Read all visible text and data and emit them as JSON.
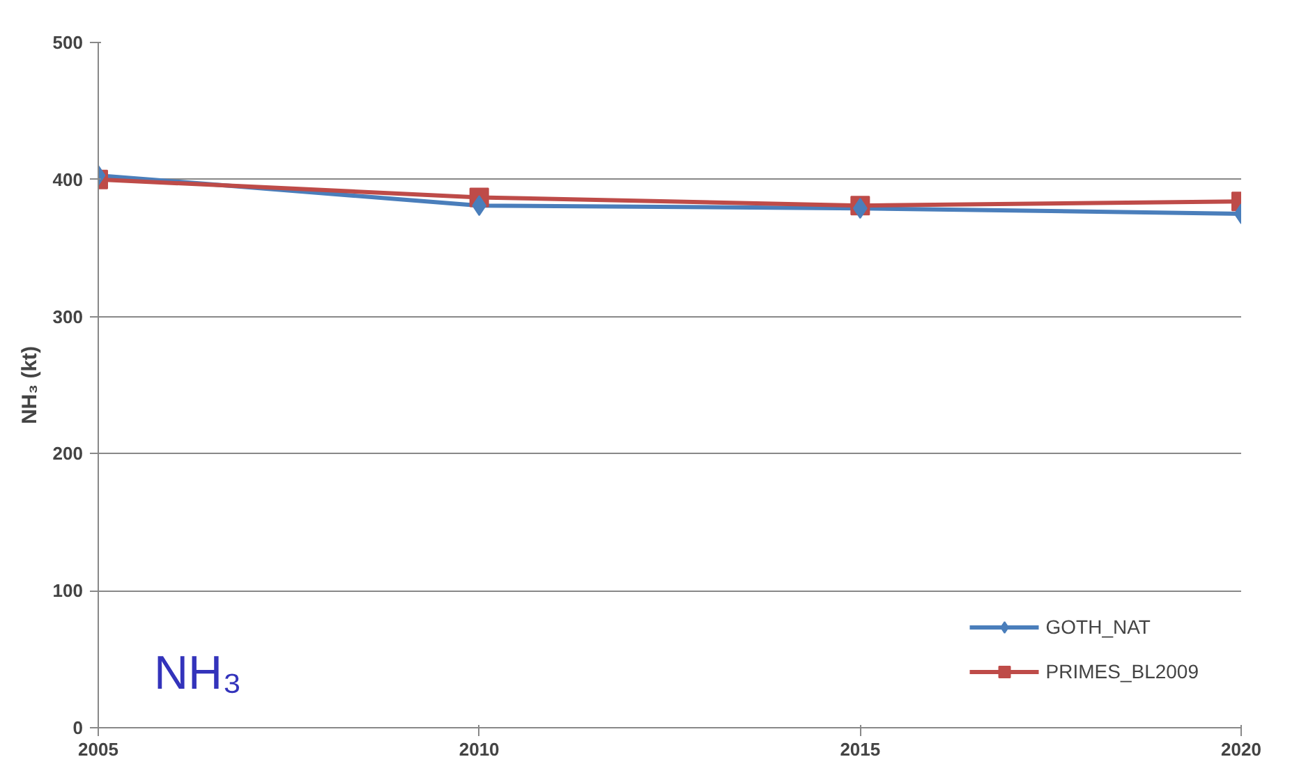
{
  "chart_data": {
    "type": "line",
    "ylabel": "NH₃ (kt)",
    "annotations": [
      "NH₃"
    ],
    "x": [
      2005,
      2010,
      2015,
      2020
    ],
    "series": [
      {
        "name": "GOTH_NAT",
        "color": "#4a7ebb",
        "marker": "diamond",
        "values": [
          403,
          381,
          379,
          375
        ]
      },
      {
        "name": "PRIMES_BL2009",
        "color": "#be4b48",
        "marker": "square",
        "values": [
          400,
          387,
          381,
          384
        ]
      }
    ],
    "xlim": [
      2005,
      2020
    ],
    "xticks": [
      2005,
      2010,
      2015,
      2020
    ],
    "ylim": [
      0,
      500
    ],
    "yticks": [
      0,
      100,
      200,
      300,
      400,
      500
    ],
    "grid": "y",
    "legend": "bottom right",
    "line_style": "solid"
  }
}
